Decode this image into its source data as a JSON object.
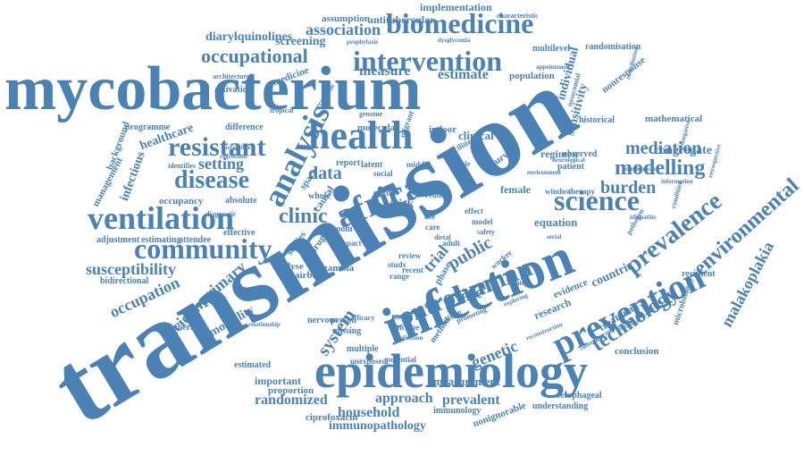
{
  "colors": {
    "word": "#4a82b6",
    "background": "#ffffff"
  },
  "words": [
    {
      "text": "transmission"
    },
    {
      "text": "mycobacterium"
    },
    {
      "text": "infection"
    },
    {
      "text": "epidemiology"
    },
    {
      "text": "health"
    },
    {
      "text": "africa"
    },
    {
      "text": "prevention"
    },
    {
      "text": "analysis"
    },
    {
      "text": "control"
    },
    {
      "text": "human"
    },
    {
      "text": "intervention"
    },
    {
      "text": "biomedicine"
    },
    {
      "text": "science"
    },
    {
      "text": "ventilation"
    },
    {
      "text": "community"
    },
    {
      "text": "prevalence"
    },
    {
      "text": "environmental"
    },
    {
      "text": "resistant"
    },
    {
      "text": "technology"
    },
    {
      "text": "disease"
    },
    {
      "text": "occupational"
    },
    {
      "text": "malakoplakia"
    },
    {
      "text": "clinic"
    },
    {
      "text": "modelling"
    },
    {
      "text": "mediation"
    },
    {
      "text": "burden"
    },
    {
      "text": "setting"
    },
    {
      "text": "data"
    },
    {
      "text": "system"
    },
    {
      "text": "genetic"
    },
    {
      "text": "incidence"
    },
    {
      "text": "public"
    },
    {
      "text": "trial"
    },
    {
      "text": "case"
    },
    {
      "text": "primary"
    },
    {
      "text": "occupation"
    },
    {
      "text": "susceptibility"
    },
    {
      "text": "randomized"
    },
    {
      "text": "household"
    },
    {
      "text": "approach"
    },
    {
      "text": "prevalent"
    },
    {
      "text": "immunopathology"
    },
    {
      "text": "measurement"
    },
    {
      "text": "association"
    },
    {
      "text": "screening"
    },
    {
      "text": "measure"
    },
    {
      "text": "estimate"
    },
    {
      "text": "individual"
    },
    {
      "text": "sensitivity"
    },
    {
      "text": "countrie"
    },
    {
      "text": "congregate"
    },
    {
      "text": "mortality"
    },
    {
      "text": "infectious"
    },
    {
      "text": "healthcare"
    },
    {
      "text": "diarylquinolines"
    },
    {
      "text": "antitubercular"
    },
    {
      "text": "implementation"
    },
    {
      "text": "assumption"
    },
    {
      "text": "equation"
    },
    {
      "text": "treatment"
    },
    {
      "text": "research"
    },
    {
      "text": "evidence"
    },
    {
      "text": "mathematical"
    },
    {
      "text": "regimen"
    },
    {
      "text": "clinical"
    },
    {
      "text": "molecular"
    },
    {
      "text": "risk"
    },
    {
      "text": "rate"
    },
    {
      "text": "causal"
    },
    {
      "text": "female"
    },
    {
      "text": "zambia"
    },
    {
      "text": "airborne"
    },
    {
      "text": "analyse"
    },
    {
      "text": "drug"
    },
    {
      "text": "studies"
    },
    {
      "text": "conclusion"
    },
    {
      "text": "microbiology"
    },
    {
      "text": "nonresponse"
    },
    {
      "text": "randomisation"
    },
    {
      "text": "background"
    },
    {
      "text": "management"
    },
    {
      "text": "adjustment"
    },
    {
      "text": "estimating"
    },
    {
      "text": "attendee"
    },
    {
      "text": "bidirectional"
    },
    {
      "text": "occupancy"
    },
    {
      "text": "absolute"
    },
    {
      "text": "effective"
    },
    {
      "text": "peripheral"
    },
    {
      "text": "important"
    },
    {
      "text": "proportion"
    },
    {
      "text": "estimated"
    },
    {
      "text": "ciprofoxacin"
    },
    {
      "text": "immunology"
    },
    {
      "text": "nonignorable"
    },
    {
      "text": "understanding"
    },
    {
      "text": "oesophageal"
    },
    {
      "text": "population"
    },
    {
      "text": "multilevel"
    },
    {
      "text": "historical"
    },
    {
      "text": "observed"
    },
    {
      "text": "patient"
    },
    {
      "text": "difference"
    },
    {
      "text": "activation"
    },
    {
      "text": "medicine"
    },
    {
      "text": "programme"
    },
    {
      "text": "recipient"
    },
    {
      "text": "multiple"
    },
    {
      "text": "unexposed"
    },
    {
      "text": "potential"
    },
    {
      "text": "method"
    },
    {
      "text": "result"
    },
    {
      "text": "income"
    },
    {
      "text": "nervous"
    },
    {
      "text": "person"
    },
    {
      "text": "missing"
    },
    {
      "text": "indoor"
    },
    {
      "text": "latent"
    },
    {
      "text": "report"
    },
    {
      "text": "survey"
    },
    {
      "text": "phase"
    },
    {
      "text": "therapy"
    },
    {
      "text": "window"
    },
    {
      "text": "impact"
    },
    {
      "text": "room"
    },
    {
      "text": "whole"
    },
    {
      "text": "space"
    },
    {
      "text": "gord"
    },
    {
      "text": "study"
    },
    {
      "text": "range"
    },
    {
      "text": "review"
    },
    {
      "text": "recent"
    },
    {
      "text": "change"
    },
    {
      "text": "worker"
    },
    {
      "text": "effect"
    },
    {
      "text": "adult"
    },
    {
      "text": "architecture"
    },
    {
      "text": "identifies"
    },
    {
      "text": "diagnostic"
    },
    {
      "text": "tropical"
    },
    {
      "text": "economic"
    },
    {
      "text": "genome"
    },
    {
      "text": "characteristic"
    },
    {
      "text": "appointment"
    },
    {
      "text": "prophylaxis"
    },
    {
      "text": "dysglycemia"
    },
    {
      "text": "nosocomial"
    },
    {
      "text": "retrospective"
    },
    {
      "text": "contribution"
    },
    {
      "text": "condition"
    },
    {
      "text": "pathogen"
    },
    {
      "text": "idiopathic"
    },
    {
      "text": "information"
    },
    {
      "text": "mechanism"
    },
    {
      "text": "middle"
    },
    {
      "text": "social"
    },
    {
      "text": "status"
    },
    {
      "text": "reduce"
    },
    {
      "text": "life"
    },
    {
      "text": "care"
    },
    {
      "text": "model"
    },
    {
      "text": "safety"
    },
    {
      "text": "distal"
    },
    {
      "text": "migrant"
    },
    {
      "text": "facilities"
    },
    {
      "text": "male"
    },
    {
      "text": "relationship"
    },
    {
      "text": "efficacy"
    },
    {
      "text": "platform"
    },
    {
      "text": "promoting"
    },
    {
      "text": "exploring"
    },
    {
      "text": "application"
    },
    {
      "text": "environment"
    },
    {
      "text": "contemporary"
    },
    {
      "text": "susceptible"
    },
    {
      "text": "regression"
    },
    {
      "text": "serial"
    },
    {
      "text": "neurological"
    },
    {
      "text": "reconstruction"
    },
    {
      "text": "presence"
    },
    {
      "text": "seronegative"
    }
  ]
}
